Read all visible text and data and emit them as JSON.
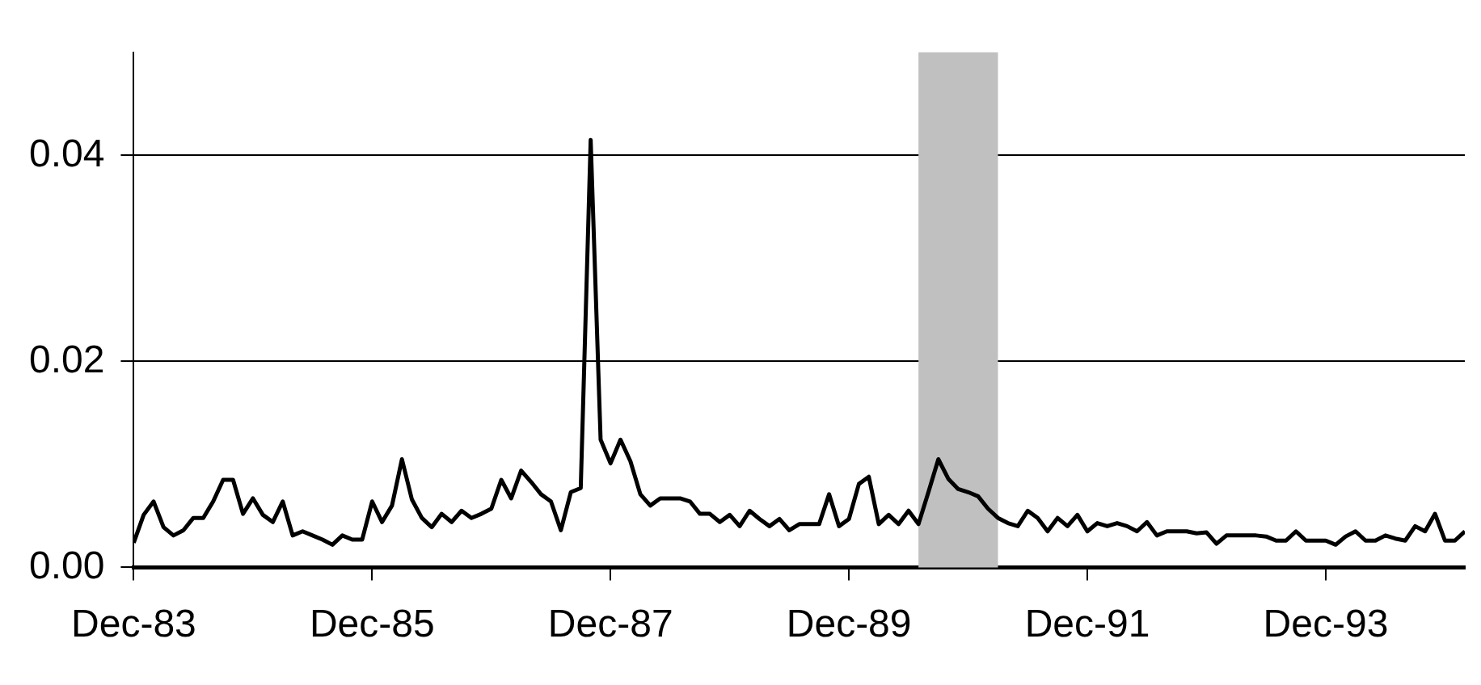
{
  "chart_data": {
    "type": "line",
    "x": [
      "1983-12",
      "1984-01",
      "1984-02",
      "1984-03",
      "1984-04",
      "1984-05",
      "1984-06",
      "1984-07",
      "1984-08",
      "1984-09",
      "1984-10",
      "1984-11",
      "1984-12",
      "1985-01",
      "1985-02",
      "1985-03",
      "1985-04",
      "1985-05",
      "1985-06",
      "1985-07",
      "1985-08",
      "1985-09",
      "1985-10",
      "1985-11",
      "1985-12",
      "1986-01",
      "1986-02",
      "1986-03",
      "1986-04",
      "1986-05",
      "1986-06",
      "1986-07",
      "1986-08",
      "1986-09",
      "1986-10",
      "1986-11",
      "1986-12",
      "1987-01",
      "1987-02",
      "1987-03",
      "1987-04",
      "1987-05",
      "1987-06",
      "1987-07",
      "1987-08",
      "1987-09",
      "1987-10",
      "1987-11",
      "1987-12",
      "1988-01",
      "1988-02",
      "1988-03",
      "1988-04",
      "1988-05",
      "1988-06",
      "1988-07",
      "1988-08",
      "1988-09",
      "1988-10",
      "1988-11",
      "1988-12",
      "1989-01",
      "1989-02",
      "1989-03",
      "1989-04",
      "1989-05",
      "1989-06",
      "1989-07",
      "1989-08",
      "1989-09",
      "1989-10",
      "1989-11",
      "1989-12",
      "1990-01",
      "1990-02",
      "1990-03",
      "1990-04",
      "1990-05",
      "1990-06",
      "1990-07",
      "1990-08",
      "1990-09",
      "1990-10",
      "1990-11",
      "1990-12",
      "1991-01",
      "1991-02",
      "1991-03",
      "1991-04",
      "1991-05",
      "1991-06",
      "1991-07",
      "1991-08",
      "1991-09",
      "1991-10",
      "1991-11",
      "1991-12",
      "1992-01",
      "1992-02",
      "1992-03",
      "1992-04",
      "1992-05",
      "1992-06",
      "1992-07",
      "1992-08",
      "1992-09",
      "1992-10",
      "1992-11",
      "1992-12",
      "1993-01",
      "1993-02",
      "1993-03",
      "1993-04",
      "1993-05",
      "1993-06",
      "1993-07",
      "1993-08",
      "1993-09",
      "1993-10",
      "1993-11",
      "1993-12",
      "1994-01",
      "1994-02",
      "1994-03",
      "1994-04",
      "1994-05",
      "1994-06",
      "1994-07",
      "1994-08",
      "1994-09",
      "1994-10",
      "1994-11",
      "1994-12",
      "1995-01",
      "1995-02"
    ],
    "series": [
      {
        "color": "#000000",
        "values": [
          0.0024,
          0.0051,
          0.0064,
          0.0039,
          0.0031,
          0.0036,
          0.0048,
          0.0048,
          0.0064,
          0.0085,
          0.0085,
          0.0052,
          0.0067,
          0.0051,
          0.0044,
          0.0064,
          0.0031,
          0.0035,
          0.0031,
          0.0027,
          0.0022,
          0.0031,
          0.0027,
          0.0027,
          0.0064,
          0.0044,
          0.006,
          0.0105,
          0.0066,
          0.0048,
          0.0039,
          0.0052,
          0.0044,
          0.0055,
          0.0048,
          0.0052,
          0.0057,
          0.0085,
          0.0067,
          0.0094,
          0.0083,
          0.0071,
          0.0064,
          0.0036,
          0.0073,
          0.0077,
          0.0415,
          0.0124,
          0.0101,
          0.0124,
          0.0103,
          0.0071,
          0.006,
          0.0067,
          0.0067,
          0.0067,
          0.0064,
          0.0052,
          0.0052,
          0.0044,
          0.0051,
          0.004,
          0.0055,
          0.0047,
          0.004,
          0.0047,
          0.0036,
          0.0042,
          0.0042,
          0.0042,
          0.0071,
          0.004,
          0.0047,
          0.0081,
          0.0088,
          0.0042,
          0.0051,
          0.0042,
          0.0055,
          0.0042,
          0.0073,
          0.0105,
          0.0086,
          0.0076,
          0.0073,
          0.0069,
          0.0057,
          0.0048,
          0.0043,
          0.004,
          0.0055,
          0.0048,
          0.0035,
          0.0048,
          0.004,
          0.0051,
          0.0035,
          0.0043,
          0.004,
          0.0043,
          0.004,
          0.0035,
          0.0044,
          0.0031,
          0.0035,
          0.0035,
          0.0035,
          0.0033,
          0.0034,
          0.0023,
          0.0031,
          0.0031,
          0.0031,
          0.0031,
          0.003,
          0.0026,
          0.0026,
          0.0035,
          0.0026,
          0.0026,
          0.0026,
          0.0022,
          0.003,
          0.0035,
          0.0026,
          0.0026,
          0.0031,
          0.0028,
          0.0026,
          0.004,
          0.0035,
          0.0052,
          0.0026,
          0.0026,
          0.0035
        ]
      }
    ],
    "xlim": [
      "1983-12",
      "1995-02"
    ],
    "xticks": [
      {
        "value": "1983-12",
        "label": "Dec-83"
      },
      {
        "value": "1985-12",
        "label": "Dec-85"
      },
      {
        "value": "1987-12",
        "label": "Dec-87"
      },
      {
        "value": "1989-12",
        "label": "Dec-89"
      },
      {
        "value": "1991-12",
        "label": "Dec-91"
      },
      {
        "value": "1993-12",
        "label": "Dec-93"
      }
    ],
    "ylim": [
      0,
      0.05
    ],
    "yticks": [
      {
        "value": 0,
        "label": "0.00"
      },
      0.02,
      0.04
    ],
    "bands": [
      {
        "axis": "x",
        "from": "1990-07",
        "to": "1991-03",
        "color": "#c0c0c0"
      }
    ],
    "grid": "y",
    "legend": false,
    "marker": "none",
    "line_style": "solid"
  }
}
